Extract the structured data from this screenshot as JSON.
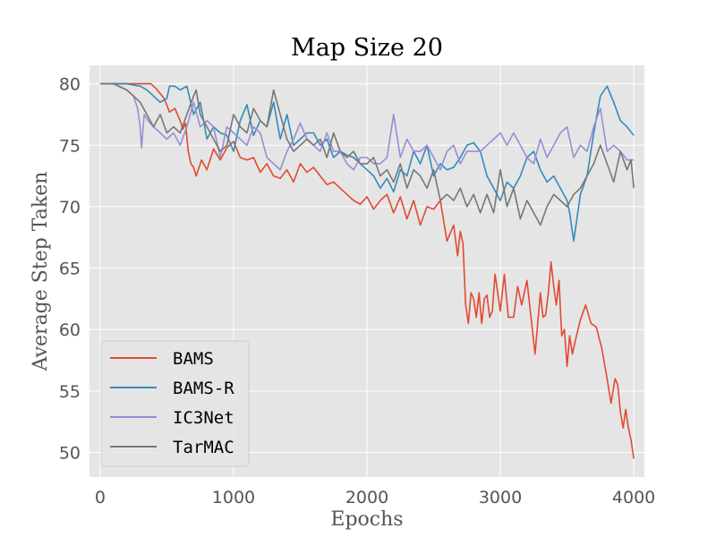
{
  "chart_data": {
    "type": "line",
    "title": "Map Size 20",
    "xlabel": "Epochs",
    "ylabel": "Average Step Taken",
    "xlim": [
      -80,
      4080
    ],
    "ylim": [
      48,
      81.5
    ],
    "xticks": [
      0,
      1000,
      2000,
      3000,
      4000
    ],
    "yticks": [
      50,
      55,
      60,
      65,
      70,
      75,
      80
    ],
    "grid": true,
    "legend_position": "lower-left",
    "series": [
      {
        "name": "BAMS",
        "color": "#e24a33",
        "x": [
          0,
          100,
          200,
          300,
          380,
          420,
          480,
          520,
          560,
          600,
          620,
          640,
          660,
          680,
          700,
          720,
          760,
          800,
          850,
          900,
          950,
          1000,
          1050,
          1100,
          1150,
          1200,
          1250,
          1300,
          1350,
          1400,
          1450,
          1500,
          1550,
          1600,
          1650,
          1700,
          1750,
          1800,
          1850,
          1900,
          1950,
          2000,
          2050,
          2100,
          2150,
          2200,
          2250,
          2300,
          2350,
          2400,
          2450,
          2500,
          2550,
          2600,
          2650,
          2680,
          2700,
          2720,
          2740,
          2760,
          2780,
          2800,
          2820,
          2840,
          2860,
          2880,
          2900,
          2920,
          2940,
          2960,
          2980,
          3000,
          3030,
          3060,
          3100,
          3130,
          3160,
          3200,
          3230,
          3260,
          3300,
          3320,
          3340,
          3360,
          3380,
          3400,
          3420,
          3440,
          3460,
          3480,
          3500,
          3520,
          3540,
          3560,
          3600,
          3640,
          3680,
          3720,
          3760,
          3800,
          3830,
          3860,
          3880,
          3900,
          3920,
          3940,
          3960,
          3980,
          4000
        ],
        "values": [
          80,
          80,
          80,
          80,
          80,
          79.6,
          78.8,
          77.7,
          78.0,
          77.0,
          76.3,
          76.8,
          74.5,
          73.5,
          73.2,
          72.5,
          73.8,
          73.0,
          74.7,
          73.8,
          74.8,
          75.3,
          74.0,
          73.8,
          74.0,
          72.8,
          73.5,
          72.5,
          72.3,
          73.0,
          72.0,
          73.5,
          72.8,
          73.2,
          72.5,
          71.8,
          72.0,
          71.5,
          71.0,
          70.5,
          70.2,
          70.8,
          69.8,
          70.5,
          71.0,
          69.5,
          70.8,
          69.0,
          70.5,
          68.5,
          70.0,
          69.8,
          70.5,
          67.2,
          68.5,
          66.0,
          68.0,
          67.0,
          62.0,
          60.5,
          63.0,
          62.5,
          61.0,
          63.0,
          60.5,
          62.5,
          62.8,
          61.0,
          61.5,
          64.5,
          63.0,
          61.5,
          64.5,
          61.0,
          61.0,
          63.5,
          62.0,
          64.0,
          61.0,
          58.0,
          63.0,
          61.0,
          61.2,
          63.0,
          65.5,
          63.5,
          62.0,
          64.0,
          59.5,
          60.0,
          57.0,
          59.5,
          58.0,
          59.0,
          60.8,
          62.0,
          60.5,
          60.2,
          58.5,
          56.0,
          54.0,
          56.0,
          55.5,
          53.3,
          52.0,
          53.5,
          52.0,
          51.0,
          49.5
        ]
      },
      {
        "name": "BAMS-R",
        "color": "#348abd",
        "x": [
          0,
          100,
          200,
          300,
          350,
          400,
          450,
          500,
          520,
          560,
          600,
          650,
          700,
          750,
          800,
          850,
          900,
          950,
          1000,
          1050,
          1100,
          1150,
          1200,
          1250,
          1300,
          1350,
          1400,
          1450,
          1500,
          1550,
          1600,
          1650,
          1700,
          1750,
          1800,
          1850,
          1900,
          1950,
          2000,
          2050,
          2100,
          2150,
          2200,
          2250,
          2300,
          2350,
          2400,
          2450,
          2500,
          2550,
          2600,
          2650,
          2700,
          2750,
          2800,
          2850,
          2900,
          2950,
          3000,
          3050,
          3100,
          3150,
          3200,
          3250,
          3300,
          3350,
          3400,
          3450,
          3500,
          3520,
          3550,
          3600,
          3650,
          3700,
          3750,
          3800,
          3850,
          3900,
          3950,
          4000
        ],
        "values": [
          80,
          80,
          80,
          79.8,
          79.5,
          79.0,
          78.5,
          78.8,
          79.8,
          79.8,
          79.5,
          79.8,
          77.5,
          78.5,
          75.5,
          76.5,
          76.0,
          75.8,
          74.5,
          77.0,
          78.3,
          75.8,
          77.0,
          76.5,
          78.5,
          75.5,
          77.5,
          75.0,
          75.5,
          76.0,
          76.0,
          75.0,
          75.5,
          74.0,
          74.5,
          74.2,
          74.0,
          73.5,
          73.0,
          72.5,
          71.5,
          72.3,
          71.2,
          73.0,
          72.5,
          74.5,
          73.5,
          75.0,
          72.5,
          73.5,
          73.0,
          73.2,
          74.0,
          75.0,
          75.2,
          74.5,
          72.5,
          71.5,
          70.5,
          72.0,
          71.5,
          72.5,
          74.0,
          74.5,
          73.0,
          72.0,
          72.5,
          71.5,
          70.5,
          69.5,
          67.2,
          71.0,
          72.5,
          76.0,
          79.0,
          79.8,
          78.5,
          77.0,
          76.5,
          75.8
        ]
      },
      {
        "name": "IC3Net",
        "color": "#988ed5",
        "x": [
          0,
          100,
          200,
          250,
          280,
          300,
          310,
          330,
          360,
          400,
          450,
          500,
          550,
          600,
          650,
          700,
          750,
          800,
          850,
          900,
          950,
          1000,
          1050,
          1100,
          1150,
          1200,
          1250,
          1300,
          1350,
          1400,
          1450,
          1500,
          1550,
          1600,
          1650,
          1700,
          1750,
          1800,
          1850,
          1900,
          1950,
          2000,
          2050,
          2100,
          2150,
          2200,
          2250,
          2300,
          2350,
          2400,
          2450,
          2500,
          2550,
          2600,
          2650,
          2700,
          2750,
          2800,
          2850,
          2900,
          2950,
          3000,
          3050,
          3100,
          3150,
          3200,
          3250,
          3300,
          3350,
          3400,
          3450,
          3500,
          3550,
          3600,
          3650,
          3700,
          3750,
          3800,
          3850,
          3900,
          3950,
          4000
        ],
        "values": [
          80,
          80,
          79.5,
          79.0,
          78.0,
          76.5,
          74.8,
          77.5,
          77.0,
          76.5,
          76.0,
          75.5,
          76.0,
          75.0,
          76.5,
          78.5,
          76.5,
          77.0,
          76.5,
          74.0,
          76.5,
          76.0,
          75.5,
          75.0,
          76.5,
          76.0,
          74.0,
          73.5,
          73.0,
          74.5,
          75.5,
          76.8,
          75.5,
          75.0,
          74.5,
          76.0,
          74.5,
          74.5,
          73.5,
          73.0,
          74.0,
          74.0,
          73.5,
          73.5,
          74.0,
          77.5,
          74.0,
          75.5,
          74.5,
          74.5,
          75.0,
          74.0,
          73.0,
          74.5,
          75.0,
          73.5,
          74.5,
          74.5,
          74.5,
          75.0,
          75.5,
          76.0,
          75.0,
          76.0,
          75.0,
          74.0,
          73.5,
          75.5,
          74.0,
          75.0,
          76.0,
          76.5,
          74.0,
          75.0,
          74.5,
          76.5,
          78.0,
          74.5,
          75.0,
          74.5,
          73.8,
          73.8
        ]
      },
      {
        "name": "TarMAC",
        "color": "#777777",
        "x": [
          0,
          100,
          200,
          250,
          300,
          350,
          400,
          450,
          500,
          550,
          600,
          650,
          700,
          720,
          750,
          800,
          850,
          900,
          950,
          1000,
          1050,
          1100,
          1150,
          1200,
          1250,
          1300,
          1350,
          1400,
          1450,
          1500,
          1550,
          1600,
          1650,
          1700,
          1750,
          1800,
          1850,
          1900,
          1950,
          2000,
          2050,
          2100,
          2150,
          2200,
          2250,
          2300,
          2350,
          2400,
          2450,
          2500,
          2550,
          2600,
          2650,
          2700,
          2750,
          2800,
          2850,
          2900,
          2950,
          3000,
          3050,
          3100,
          3150,
          3200,
          3250,
          3300,
          3350,
          3400,
          3450,
          3500,
          3550,
          3600,
          3650,
          3700,
          3750,
          3800,
          3850,
          3900,
          3950,
          3980,
          4000
        ],
        "values": [
          80,
          80,
          79.5,
          79.0,
          78.5,
          77.5,
          76.5,
          77.5,
          76.0,
          76.5,
          76.0,
          77.5,
          79.0,
          79.5,
          77.5,
          76.5,
          75.5,
          74.5,
          75.0,
          77.5,
          76.5,
          76.0,
          78.0,
          77.0,
          76.5,
          79.5,
          77.5,
          75.5,
          74.5,
          75.0,
          75.5,
          75.0,
          75.5,
          74.0,
          76.0,
          74.5,
          74.0,
          74.5,
          73.5,
          73.5,
          74.0,
          72.5,
          73.0,
          72.0,
          73.5,
          71.5,
          73.0,
          72.5,
          71.5,
          73.0,
          70.5,
          71.0,
          70.5,
          71.5,
          70.0,
          71.0,
          69.5,
          71.0,
          69.5,
          73.0,
          70.0,
          71.5,
          69.0,
          70.5,
          69.5,
          68.5,
          70.0,
          71.0,
          70.5,
          70.0,
          71.0,
          71.5,
          72.5,
          73.5,
          75.0,
          73.5,
          72.0,
          74.5,
          73.0,
          73.8,
          71.5
        ]
      }
    ]
  }
}
